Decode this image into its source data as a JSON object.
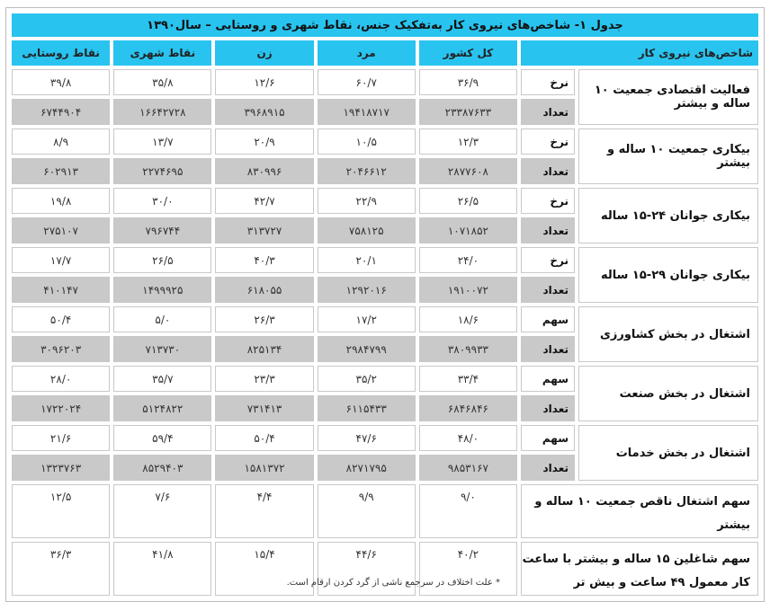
{
  "title": "جدول ۱- شاخص‌های نیروی کار به‌تفکیک جنس، نقاط شهری و روستایی – سال۱۳۹۰",
  "headers": [
    "شاخص‌های نیروی کار",
    "کل کشور",
    "مرد",
    "زن",
    "نقاط شهری",
    "نقاط روستایی"
  ],
  "groups": [
    {
      "label": "فعالیت اقتصادی جمعیت ۱۰ ساله و بیشتر",
      "rows": [
        {
          "type": "نرخ",
          "values": [
            "۳۶/۹",
            "۶۰/۷",
            "۱۲/۶",
            "۳۵/۸",
            "۳۹/۸"
          ]
        },
        {
          "type": "تعداد",
          "values": [
            "۲۳۳۸۷۶۳۳",
            "۱۹۴۱۸۷۱۷",
            "۳۹۶۸۹۱۵",
            "۱۶۶۴۲۷۲۸",
            "۶۷۴۴۹۰۴"
          ]
        }
      ]
    },
    {
      "label": "بیکاری جمعیت ۱۰ ساله و بیشتر",
      "rows": [
        {
          "type": "نرخ",
          "values": [
            "۱۲/۳",
            "۱۰/۵",
            "۲۰/۹",
            "۱۳/۷",
            "۸/۹"
          ]
        },
        {
          "type": "تعداد",
          "values": [
            "۲۸۷۷۶۰۸",
            "۲۰۴۶۶۱۲",
            "۸۳۰۹۹۶",
            "۲۲۷۴۶۹۵",
            "۶۰۲۹۱۳"
          ]
        }
      ]
    },
    {
      "label": "بیکاری جوانان ۲۴-۱۵ ساله",
      "rows": [
        {
          "type": "نرخ",
          "values": [
            "۲۶/۵",
            "۲۲/۹",
            "۴۲/۷",
            "۳۰/۰",
            "۱۹/۸"
          ]
        },
        {
          "type": "تعداد",
          "values": [
            "۱۰۷۱۸۵۲",
            "۷۵۸۱۲۵",
            "۳۱۳۷۲۷",
            "۷۹۶۷۴۴",
            "۲۷۵۱۰۷"
          ]
        }
      ]
    },
    {
      "label": "بیکاری جوانان ۲۹-۱۵ ساله",
      "rows": [
        {
          "type": "نرخ",
          "values": [
            "۲۴/۰",
            "۲۰/۱",
            "۴۰/۳",
            "۲۶/۵",
            "۱۷/۷"
          ]
        },
        {
          "type": "تعداد",
          "values": [
            "۱۹۱۰۰۷۲",
            "۱۲۹۲۰۱۶",
            "۶۱۸۰۵۵",
            "۱۴۹۹۹۲۵",
            "۴۱۰۱۴۷"
          ]
        }
      ]
    },
    {
      "label": "اشتغال در بخش کشاورزی",
      "rows": [
        {
          "type": "سهم",
          "values": [
            "۱۸/۶",
            "۱۷/۲",
            "۲۶/۳",
            "۵/۰",
            "۵۰/۴"
          ]
        },
        {
          "type": "تعداد",
          "values": [
            "۳۸۰۹۹۳۳",
            "۲۹۸۴۷۹۹",
            "۸۲۵۱۳۴",
            "۷۱۳۷۳۰",
            "۳۰۹۶۲۰۳"
          ]
        }
      ]
    },
    {
      "label": "اشتغال در بخش صنعت",
      "rows": [
        {
          "type": "سهم",
          "values": [
            "۳۳/۴",
            "۳۵/۲",
            "۲۳/۳",
            "۳۵/۷",
            "۲۸/۰"
          ]
        },
        {
          "type": "تعداد",
          "values": [
            "۶۸۴۶۸۴۶",
            "۶۱۱۵۴۳۳",
            "۷۳۱۴۱۳",
            "۵۱۲۴۸۲۲",
            "۱۷۲۲۰۲۴"
          ]
        }
      ]
    },
    {
      "label": "اشتغال در بخش خدمات",
      "rows": [
        {
          "type": "سهم",
          "values": [
            "۴۸/۰",
            "۴۷/۶",
            "۵۰/۴",
            "۵۹/۴",
            "۲۱/۶"
          ]
        },
        {
          "type": "تعداد",
          "values": [
            "۹۸۵۳۱۶۷",
            "۸۲۷۱۷۹۵",
            "۱۵۸۱۳۷۲",
            "۸۵۲۹۴۰۳",
            "۱۳۲۳۷۶۳"
          ]
        }
      ]
    }
  ],
  "singles": [
    {
      "label": "سهم اشتغال ناقص جمعیت ۱۰ ساله و بیشتر",
      "values": [
        "۹/۰",
        "۹/۹",
        "۴/۴",
        "۷/۶",
        "۱۲/۵"
      ]
    },
    {
      "label": "سهم شاغلین ۱۵ ساله و بیشتر با ساعت کار معمول ۴۹ ساعت و بیش تر",
      "values": [
        "۴۰/۲",
        "۴۴/۶",
        "۱۵/۴",
        "۴۱/۸",
        "۳۶/۳"
      ]
    }
  ],
  "footnote": "* علت اختلاف در سرجمع ناشی از گرد کردن ارقام است.",
  "colors": {
    "header": "#29c3ef",
    "count_row": "#c9c9c9"
  }
}
